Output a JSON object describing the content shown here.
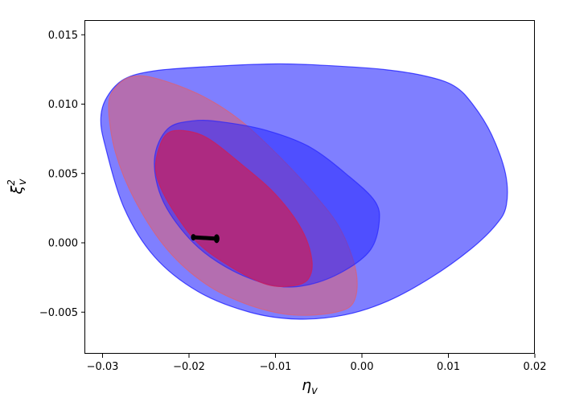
{
  "chart_data": {
    "type": "contour",
    "title": "",
    "xlabel_base": "η",
    "xlabel_sub": "v",
    "ylabel_base": "ξ",
    "ylabel_sub": "v",
    "ylabel_sup": "2",
    "xlim": [
      -0.032,
      0.02
    ],
    "ylim": [
      -0.008,
      0.016
    ],
    "grid": false,
    "x_ticks": [
      {
        "value": -0.03,
        "label": "−0.03"
      },
      {
        "value": -0.02,
        "label": "−0.02"
      },
      {
        "value": -0.01,
        "label": "−0.01"
      },
      {
        "value": 0.0,
        "label": "0.00"
      },
      {
        "value": 0.01,
        "label": "0.01"
      },
      {
        "value": 0.02,
        "label": "0.02"
      }
    ],
    "y_ticks": [
      {
        "value": -0.005,
        "label": "−0.005"
      },
      {
        "value": 0.0,
        "label": "0.000"
      },
      {
        "value": 0.005,
        "label": "0.005"
      },
      {
        "value": 0.01,
        "label": "0.010"
      },
      {
        "value": 0.015,
        "label": "0.015"
      }
    ],
    "regions": [
      {
        "id": "blue-outer",
        "color": "#0000ff",
        "opacity": 0.5,
        "points": [
          [
            -0.0295,
            0.0105
          ],
          [
            -0.0275,
            0.0118
          ],
          [
            -0.024,
            0.0124
          ],
          [
            -0.018,
            0.0127
          ],
          [
            -0.01,
            0.0129
          ],
          [
            -0.0045,
            0.0128
          ],
          [
            0.0025,
            0.0125
          ],
          [
            0.0075,
            0.012
          ],
          [
            0.0107,
            0.0113
          ],
          [
            0.0128,
            0.01
          ],
          [
            0.015,
            0.0078
          ],
          [
            0.0166,
            0.005
          ],
          [
            0.0167,
            0.0027
          ],
          [
            0.0155,
            0.0013
          ],
          [
            0.0125,
            -0.0005
          ],
          [
            0.008,
            -0.0025
          ],
          [
            0.003,
            -0.0042
          ],
          [
            -0.002,
            -0.0052
          ],
          [
            -0.0075,
            -0.0055
          ],
          [
            -0.013,
            -0.005
          ],
          [
            -0.019,
            -0.0035
          ],
          [
            -0.024,
            -0.001
          ],
          [
            -0.0275,
            0.0025
          ],
          [
            -0.0297,
            0.007
          ],
          [
            -0.0302,
            0.009
          ]
        ]
      },
      {
        "id": "pink-outer",
        "color": "#e06070",
        "opacity": 0.55,
        "points": [
          [
            -0.0293,
            0.0098
          ],
          [
            -0.0285,
            0.0112
          ],
          [
            -0.0265,
            0.012
          ],
          [
            -0.0235,
            0.0118
          ],
          [
            -0.0185,
            0.0106
          ],
          [
            -0.014,
            0.0088
          ],
          [
            -0.0095,
            0.0062
          ],
          [
            -0.0055,
            0.0035
          ],
          [
            -0.0025,
            0.001
          ],
          [
            -0.0007,
            -0.002
          ],
          [
            -0.0009,
            -0.0042
          ],
          [
            -0.003,
            -0.005
          ],
          [
            -0.008,
            -0.0052
          ],
          [
            -0.013,
            -0.0045
          ],
          [
            -0.018,
            -0.003
          ],
          [
            -0.0225,
            -0.0005
          ],
          [
            -0.0262,
            0.003
          ],
          [
            -0.0285,
            0.0065
          ]
        ]
      },
      {
        "id": "blue-inner",
        "color": "#2020ff",
        "opacity": 0.5,
        "points": [
          [
            -0.024,
            0.006
          ],
          [
            -0.0225,
            0.0082
          ],
          [
            -0.0195,
            0.0088
          ],
          [
            -0.016,
            0.0087
          ],
          [
            -0.011,
            0.0081
          ],
          [
            -0.006,
            0.0069
          ],
          [
            -0.0015,
            0.0048
          ],
          [
            0.0015,
            0.003
          ],
          [
            0.002,
            0.0015
          ],
          [
            0.001,
            -0.0005
          ],
          [
            -0.002,
            -0.002
          ],
          [
            -0.006,
            -0.003
          ],
          [
            -0.01,
            -0.0031
          ],
          [
            -0.015,
            -0.002
          ],
          [
            -0.0195,
            0.0
          ],
          [
            -0.023,
            0.003
          ]
        ]
      },
      {
        "id": "pink-inner",
        "color": "#c82060",
        "opacity": 0.72,
        "points": [
          [
            -0.0238,
            0.006
          ],
          [
            -0.0228,
            0.0077
          ],
          [
            -0.021,
            0.0081
          ],
          [
            -0.018,
            0.0076
          ],
          [
            -0.014,
            0.0057
          ],
          [
            -0.01,
            0.0035
          ],
          [
            -0.007,
            0.001
          ],
          [
            -0.0058,
            -0.0012
          ],
          [
            -0.0062,
            -0.0026
          ],
          [
            -0.008,
            -0.0031
          ],
          [
            -0.011,
            -0.003
          ],
          [
            -0.015,
            -0.0018
          ],
          [
            -0.019,
            0.0
          ],
          [
            -0.022,
            0.0025
          ],
          [
            -0.0236,
            0.0045
          ]
        ]
      }
    ],
    "segment": {
      "x": [
        -0.0195,
        -0.0168
      ],
      "y": [
        0.0004,
        0.0003
      ],
      "color": "#000000"
    }
  }
}
